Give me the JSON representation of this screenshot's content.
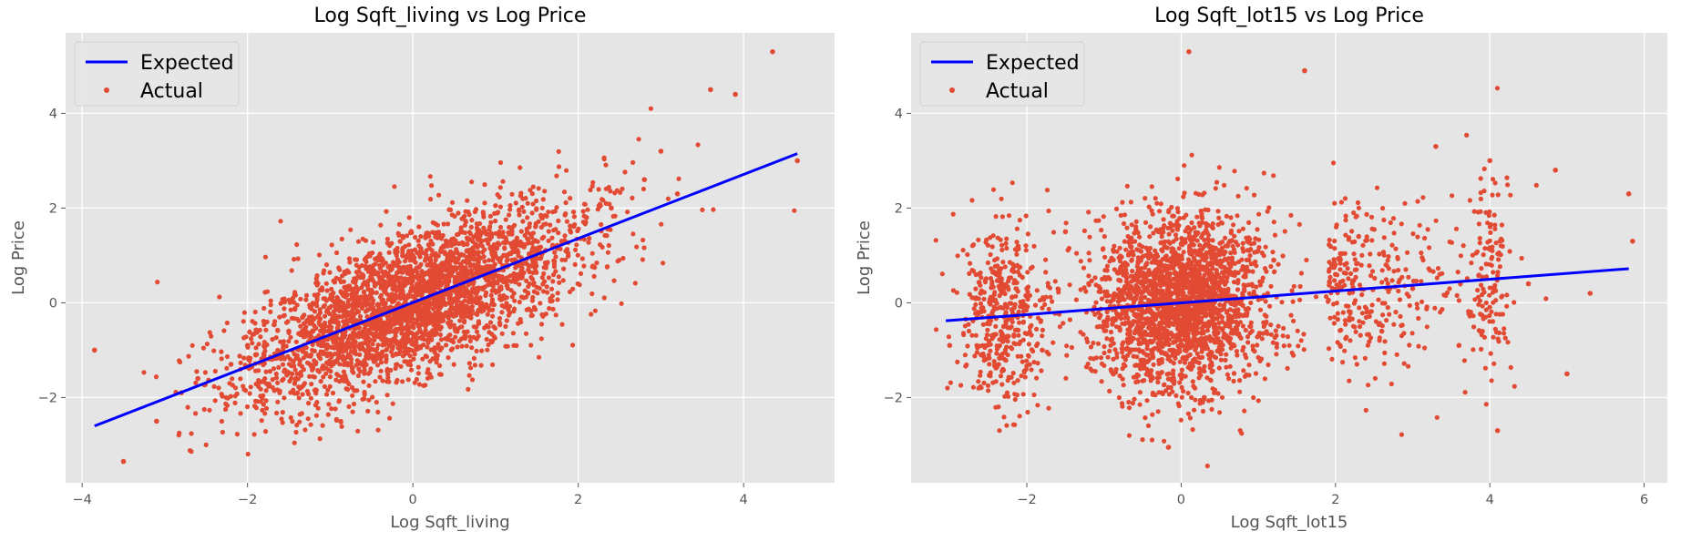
{
  "chart_data": [
    {
      "type": "scatter",
      "title": "Log Sqft_living vs Log Price",
      "xlabel": "Log Sqft_living",
      "ylabel": "Log Price",
      "xlim": [
        -4.2,
        5.1
      ],
      "ylim": [
        -3.8,
        5.7
      ],
      "xticks": [
        -4,
        -2,
        0,
        2,
        4
      ],
      "yticks": [
        -2,
        0,
        2,
        4
      ],
      "xtick_labels": [
        "−4",
        "−2",
        "0",
        "2",
        "4"
      ],
      "ytick_labels": [
        "−2",
        "0",
        "2",
        "4"
      ],
      "grid": true,
      "legend": {
        "position": "top-left",
        "entries": [
          "Expected",
          "Actual"
        ]
      },
      "series": [
        {
          "name": "Expected",
          "kind": "line",
          "color": "#0000ff",
          "x": [
            -3.85,
            4.65
          ],
          "y": [
            -2.6,
            3.15
          ]
        },
        {
          "name": "Actual",
          "kind": "scatter",
          "color": "#e24a33",
          "x": [
            -3.85,
            -3.5,
            -3.1,
            -2.8,
            -2.6,
            -2.2,
            -2.0,
            -1.8,
            -1.5,
            -1.2,
            -1.0,
            -0.8,
            -0.5,
            -0.2,
            0.0,
            0.3,
            0.6,
            0.9,
            1.2,
            1.5,
            1.8,
            2.1,
            2.4,
            2.8,
            3.0,
            3.2,
            3.6,
            3.9,
            4.35,
            4.65
          ],
          "y": [
            -1.0,
            -3.35,
            -2.5,
            -1.9,
            -1.6,
            -1.3,
            -0.9,
            -1.1,
            -0.6,
            -0.8,
            -0.4,
            -0.2,
            0.1,
            -0.3,
            0.0,
            0.4,
            0.2,
            0.7,
            0.9,
            1.1,
            1.3,
            1.8,
            2.0,
            2.6,
            3.2,
            2.3,
            4.5,
            4.4,
            5.3,
            3.0
          ]
        }
      ]
    },
    {
      "type": "scatter",
      "title": "Log Sqft_lot15 vs Log Price",
      "xlabel": "Log Sqft_lot15",
      "ylabel": "Log Price",
      "xlim": [
        -3.5,
        6.3
      ],
      "ylim": [
        -3.8,
        5.7
      ],
      "xticks": [
        -2,
        0,
        2,
        4,
        6
      ],
      "yticks": [
        -2,
        0,
        2,
        4
      ],
      "xtick_labels": [
        "−2",
        "0",
        "2",
        "4",
        "6"
      ],
      "ytick_labels": [
        "−2",
        "0",
        "2",
        "4"
      ],
      "grid": true,
      "legend": {
        "position": "top-left",
        "entries": [
          "Expected",
          "Actual"
        ]
      },
      "series": [
        {
          "name": "Expected",
          "kind": "line",
          "color": "#0000ff",
          "x": [
            -3.05,
            5.8
          ],
          "y": [
            -0.38,
            0.72
          ]
        },
        {
          "name": "Actual",
          "kind": "scatter",
          "color": "#e24a33",
          "x": [
            -3.0,
            -2.6,
            -2.3,
            -2.0,
            -1.8,
            -1.5,
            -1.0,
            -0.7,
            -0.4,
            -0.1,
            0.1,
            0.3,
            0.6,
            0.9,
            1.2,
            1.6,
            2.0,
            2.3,
            2.6,
            3.0,
            3.3,
            3.6,
            4.0,
            4.1,
            4.5,
            4.85,
            5.0,
            5.3,
            5.8,
            5.85
          ],
          "y": [
            -0.9,
            0.2,
            -0.5,
            0.3,
            -1.0,
            1.5,
            -0.4,
            0.8,
            -1.5,
            0.5,
            5.3,
            -2.0,
            1.2,
            -0.5,
            0.9,
            4.9,
            0.6,
            1.4,
            -0.6,
            0.3,
            3.3,
            -0.9,
            3.0,
            -2.7,
            0.4,
            2.8,
            -1.5,
            0.2,
            2.3,
            1.3
          ]
        }
      ]
    }
  ]
}
